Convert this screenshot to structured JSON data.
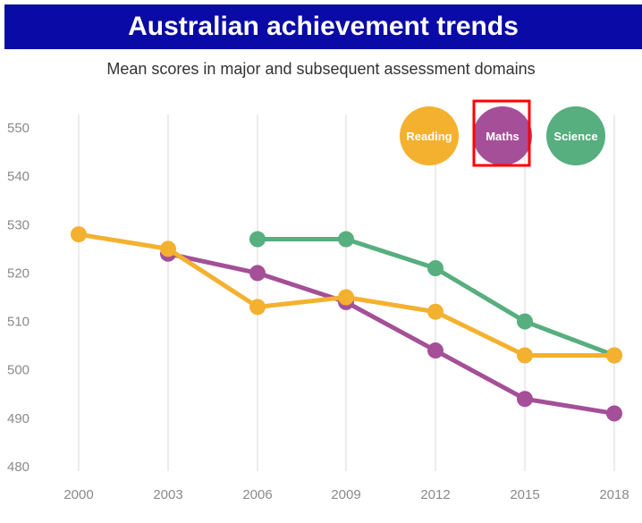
{
  "title": "Australian achievement trends",
  "subtitle": "Mean scores in major and subsequent assessment domains",
  "colors": {
    "title_bar": "#0a0aa6",
    "reading": "#f4b12f",
    "maths": "#a44f97",
    "science": "#57ae7f",
    "highlight": "#ff0000",
    "grid": "#d8d8d8",
    "tick": "#8a8a8a"
  },
  "chart_data": {
    "type": "line",
    "title": "Australian achievement trends",
    "subtitle": "Mean scores in major and subsequent assessment domains",
    "xlabel": "",
    "ylabel": "",
    "ylim": [
      480,
      550
    ],
    "yticks": [
      480,
      490,
      500,
      510,
      520,
      530,
      540,
      550
    ],
    "categories": [
      "2000",
      "2003",
      "2006",
      "2009",
      "2012",
      "2015",
      "2018"
    ],
    "grid": "vertical",
    "legend_position": "top-right",
    "highlighted_legend_entry": "Maths",
    "series": [
      {
        "name": "Reading",
        "values": [
          528,
          525,
          513,
          515,
          512,
          503,
          503
        ]
      },
      {
        "name": "Maths",
        "values": [
          null,
          524,
          520,
          514,
          504,
          494,
          491
        ]
      },
      {
        "name": "Science",
        "values": [
          null,
          null,
          527,
          527,
          521,
          510,
          503
        ]
      }
    ]
  }
}
